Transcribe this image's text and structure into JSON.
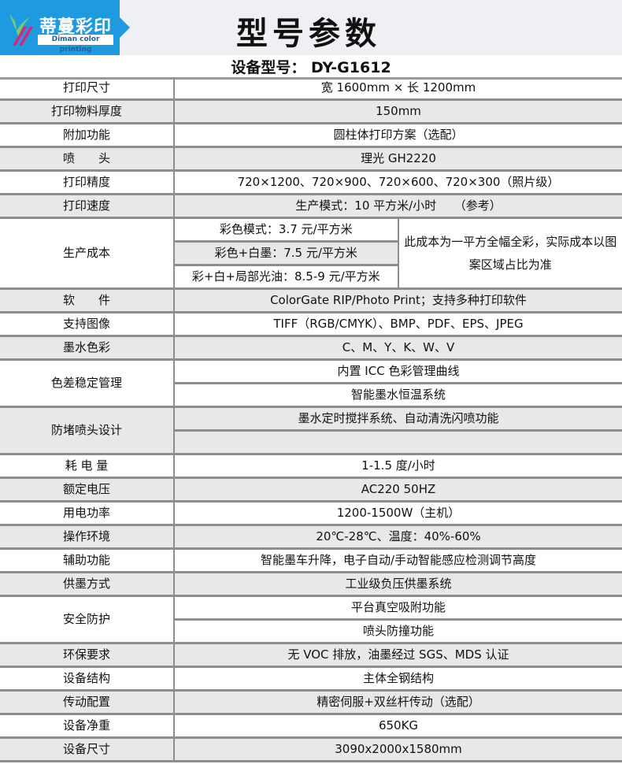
{
  "header": {
    "logo_cn": "蒂蔓彩印",
    "logo_en": "Diman color printing",
    "title": "型号参数",
    "brand_color": "#1e9be0"
  },
  "model": "设备型号： DY-G1612",
  "rows": [
    {
      "label": "打印尺寸",
      "values": [
        "宽 1600mm × 长 1200mm"
      ]
    },
    {
      "label": "打印物料厚度",
      "values": [
        "150mm"
      ]
    },
    {
      "label": "附加功能",
      "values": [
        "圆柱体打印方案（选配）"
      ]
    },
    {
      "label": "喷　　头",
      "values": [
        "理光 GH2220"
      ]
    },
    {
      "label": "打印精度",
      "values": [
        "720×1200、720×900、720×600、720×300（照片级）"
      ]
    },
    {
      "label": "打印速度",
      "values": [
        "生产模式：10 平方米/小时　　（参考）"
      ]
    },
    {
      "label": "生产成本",
      "values": [
        "彩色模式：3.7 元/平方米",
        "彩色+白墨：7.5 元/平方米",
        "彩+白+局部光油：8.5-9 元/平方米"
      ],
      "note": "此成本为一平方全幅全彩，实际成本以图案区域占比为准"
    },
    {
      "label": "软　　件",
      "values": [
        "ColorGate RIP/Photo Print；支持多种打印软件"
      ]
    },
    {
      "label": "支持图像",
      "values": [
        "TIFF（RGB/CMYK）、BMP、PDF、EPS、JPEG"
      ]
    },
    {
      "label": "墨水色彩",
      "values": [
        "C、M、Y、K、W、V"
      ]
    },
    {
      "label": "色差稳定管理",
      "values": [
        "内置 ICC 色彩管理曲线",
        "智能墨水恒温系统"
      ]
    },
    {
      "label": "防堵喷头设计",
      "values": [
        "墨水定时搅拌系统、自动清洗闪喷功能",
        ""
      ]
    },
    {
      "label": "耗 电 量",
      "values": [
        "1-1.5 度/小时"
      ]
    },
    {
      "label": "额定电压",
      "values": [
        "AC220 50HZ"
      ]
    },
    {
      "label": "用电功率",
      "values": [
        "1200-1500W（主机）"
      ]
    },
    {
      "label": "操作环境",
      "values": [
        "20℃-28℃、温度：40%-60%"
      ]
    },
    {
      "label": "辅助功能",
      "values": [
        "智能墨车升降，电子自动/手动智能感应检测调节高度"
      ]
    },
    {
      "label": "供墨方式",
      "values": [
        "工业级负压供墨系统"
      ]
    },
    {
      "label": "安全防护",
      "values": [
        "平台真空吸附功能",
        "喷头防撞功能"
      ]
    },
    {
      "label": "环保要求",
      "values": [
        "无 VOC 排放，油墨经过 SGS、MDS 认证"
      ]
    },
    {
      "label": "设备结构",
      "values": [
        "主体全钢结构"
      ]
    },
    {
      "label": "传动配置",
      "values": [
        "精密伺服+双丝杆传动（选配）"
      ]
    },
    {
      "label": "设备净重",
      "values": [
        "650KG"
      ]
    },
    {
      "label": "设备尺寸",
      "values": [
        "3090x2000x1580mm"
      ]
    }
  ]
}
